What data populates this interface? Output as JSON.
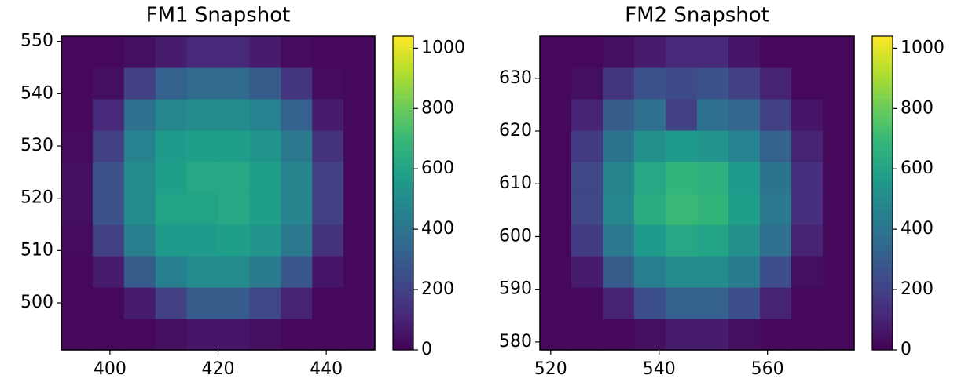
{
  "chart_data": [
    {
      "type": "heatmap",
      "title": "FM1 Snapshot",
      "colormap": "viridis",
      "xlim": [
        391,
        449
      ],
      "ylim": [
        491,
        551
      ],
      "xticks": [
        400,
        420,
        440
      ],
      "yticks": [
        500,
        510,
        520,
        530,
        540,
        550
      ],
      "clim": [
        0,
        1040
      ],
      "cticks": [
        0,
        200,
        400,
        600,
        800,
        1000
      ],
      "z": [
        [
          20,
          20,
          20,
          40,
          60,
          60,
          40,
          20,
          20,
          20
        ],
        [
          20,
          20,
          80,
          200,
          300,
          300,
          220,
          100,
          20,
          20
        ],
        [
          20,
          80,
          300,
          450,
          500,
          500,
          430,
          280,
          60,
          20
        ],
        [
          30,
          200,
          450,
          560,
          560,
          580,
          540,
          420,
          150,
          20
        ],
        [
          40,
          260,
          500,
          600,
          600,
          620,
          580,
          470,
          200,
          20
        ],
        [
          40,
          260,
          500,
          580,
          620,
          620,
          580,
          470,
          200,
          20
        ],
        [
          30,
          200,
          460,
          560,
          580,
          580,
          540,
          420,
          150,
          20
        ],
        [
          20,
          120,
          380,
          480,
          500,
          500,
          460,
          320,
          80,
          20
        ],
        [
          20,
          40,
          200,
          320,
          360,
          360,
          300,
          160,
          30,
          20
        ],
        [
          20,
          20,
          40,
          80,
          120,
          120,
          80,
          30,
          20,
          20
        ]
      ]
    },
    {
      "type": "heatmap",
      "title": "FM2 Snapshot",
      "colormap": "viridis",
      "xlim": [
        518,
        576
      ],
      "ylim": [
        578.5,
        638
      ],
      "xticks": [
        520,
        540,
        560
      ],
      "yticks": [
        580,
        590,
        600,
        610,
        620,
        630
      ],
      "clim": [
        0,
        1040
      ],
      "cticks": [
        0,
        200,
        400,
        600,
        800,
        1000
      ],
      "z": [
        [
          20,
          20,
          20,
          40,
          80,
          80,
          40,
          20,
          20,
          20
        ],
        [
          20,
          20,
          100,
          250,
          320,
          320,
          250,
          100,
          20,
          20
        ],
        [
          20,
          80,
          300,
          450,
          500,
          500,
          430,
          250,
          40,
          20
        ],
        [
          20,
          180,
          420,
          560,
          620,
          600,
          520,
          380,
          100,
          20
        ],
        [
          20,
          220,
          480,
          640,
          700,
          680,
          580,
          420,
          140,
          20
        ],
        [
          20,
          220,
          470,
          620,
          680,
          660,
          560,
          400,
          140,
          20
        ],
        [
          20,
          180,
          400,
          520,
          560,
          540,
          460,
          320,
          100,
          20
        ],
        [
          20,
          100,
          300,
          380,
          200,
          380,
          340,
          200,
          60,
          20
        ],
        [
          20,
          40,
          160,
          260,
          240,
          260,
          200,
          100,
          20,
          20
        ],
        [
          20,
          20,
          40,
          80,
          120,
          120,
          60,
          20,
          20,
          20
        ]
      ]
    }
  ]
}
